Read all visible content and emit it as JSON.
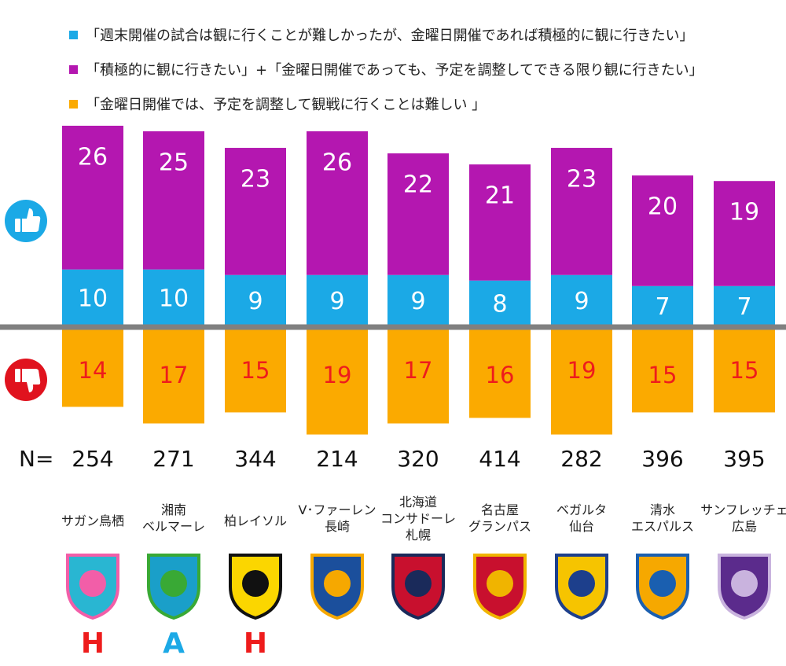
{
  "legend": [
    {
      "label": "「週末開催の試合は観に行くことが難しかったが、金曜日開催であれば積極的に観に行きたい」",
      "color": "#1ba9e6"
    },
    {
      "label": "「積極的に観に行きたい」+「金曜日開催であっても、予定を調整してできる限り観に行きたい」",
      "color": "#b417b0"
    },
    {
      "label": "「金曜日開催では、予定を調整して観戦に行くことは難しい 」",
      "color": "#fbaa00"
    }
  ],
  "n_label": "N=",
  "icons": {
    "positive": "thumbs-up-icon",
    "negative": "thumbs-down-icon"
  },
  "colors": {
    "blue": "#1ba9e6",
    "purple": "#b417b0",
    "orange": "#fbaa00",
    "axis": "#808080",
    "negative_text": "#ee1c1c",
    "home": "#ee1c1c",
    "away": "#1ba9e6"
  },
  "chart_data": {
    "type": "bar",
    "stacked": true,
    "categories": [
      "サガン鳥栖",
      "湘南\nベルマーレ",
      "柏レイソル",
      "V･ファーレン\n長崎",
      "北海道\nコンサドーレ\n札幌",
      "名古屋\nグランパス",
      "ベガルタ\n仙台",
      "清水\nエスパルス",
      "サンフレッチェ\n広島"
    ],
    "series": [
      {
        "name": "「週末開催の試合は観に行くことが難しかったが、金曜日開催であれば積極的に観に行きたい」",
        "values": [
          10,
          10,
          9,
          9,
          9,
          8,
          9,
          7,
          7
        ]
      },
      {
        "name": "「積極的に観に行きたい」+「金曜日開催であっても、予定を調整してできる限り観に行きたい」",
        "values": [
          26,
          25,
          23,
          26,
          22,
          21,
          23,
          20,
          19
        ]
      },
      {
        "name": "「金曜日開催では、予定を調整して観戦に行くことは難しい 」",
        "values": [
          14,
          17,
          15,
          19,
          17,
          16,
          19,
          15,
          15
        ],
        "direction": "below"
      }
    ],
    "n": [
      254,
      271,
      344,
      214,
      320,
      414,
      282,
      396,
      395
    ],
    "marks": [
      "H",
      "A",
      "H",
      "",
      "",
      "",
      "",
      "",
      ""
    ],
    "title": "",
    "xlabel": "",
    "ylabel": ""
  }
}
